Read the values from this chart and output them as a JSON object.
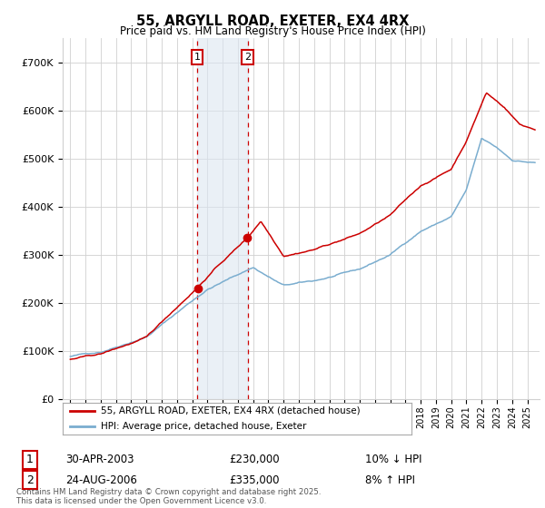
{
  "title": "55, ARGYLL ROAD, EXETER, EX4 4RX",
  "subtitle": "Price paid vs. HM Land Registry's House Price Index (HPI)",
  "legend_line1": "55, ARGYLL ROAD, EXETER, EX4 4RX (detached house)",
  "legend_line2": "HPI: Average price, detached house, Exeter",
  "footer": "Contains HM Land Registry data © Crown copyright and database right 2025.\nThis data is licensed under the Open Government Licence v3.0.",
  "purchase1_date": "30-APR-2003",
  "purchase1_price": 230000,
  "purchase1_hpi": "10% ↓ HPI",
  "purchase2_date": "24-AUG-2006",
  "purchase2_price": 335000,
  "purchase2_hpi": "8% ↑ HPI",
  "property_line_color": "#cc0000",
  "hpi_line_color": "#7aadcf",
  "purchase1_marker_color": "#cc0000",
  "purchase2_marker_color": "#cc0000",
  "vline_color": "#cc0000",
  "vshade_color": "#dce6f1",
  "background_color": "#ffffff",
  "grid_color": "#d0d0d0",
  "ylim": [
    0,
    750000
  ],
  "yticks": [
    0,
    100000,
    200000,
    300000,
    400000,
    500000,
    600000,
    700000
  ],
  "ytick_labels": [
    "£0",
    "£100K",
    "£200K",
    "£300K",
    "£400K",
    "£500K",
    "£600K",
    "£700K"
  ],
  "year_start": 1995,
  "year_end": 2025,
  "purchase1_year": 2003.33,
  "purchase2_year": 2006.65,
  "xlim_left": 1994.5,
  "xlim_right": 2025.8,
  "prop_knots_x": [
    1995,
    1997,
    2000,
    2003.33,
    2004.5,
    2006.65,
    2007.5,
    2009,
    2011,
    2014,
    2016,
    2018,
    2020,
    2021,
    2022.3,
    2023.5,
    2024.5,
    2025.5
  ],
  "prop_knots_y": [
    82000,
    92000,
    125000,
    230000,
    270000,
    335000,
    370000,
    300000,
    315000,
    348000,
    385000,
    445000,
    480000,
    540000,
    640000,
    610000,
    575000,
    565000
  ],
  "hpi_knots_x": [
    1995,
    1997,
    2000,
    2003,
    2004,
    2007,
    2009,
    2011,
    2014,
    2016,
    2018,
    2020,
    2021,
    2022,
    2023,
    2024,
    2025.5
  ],
  "hpi_knots_y": [
    88000,
    98000,
    133000,
    208000,
    232000,
    278000,
    240000,
    248000,
    270000,
    300000,
    350000,
    380000,
    435000,
    540000,
    520000,
    495000,
    490000
  ],
  "noise_seed": 42,
  "noise_scale_prop": 1800,
  "noise_scale_hpi": 1500
}
